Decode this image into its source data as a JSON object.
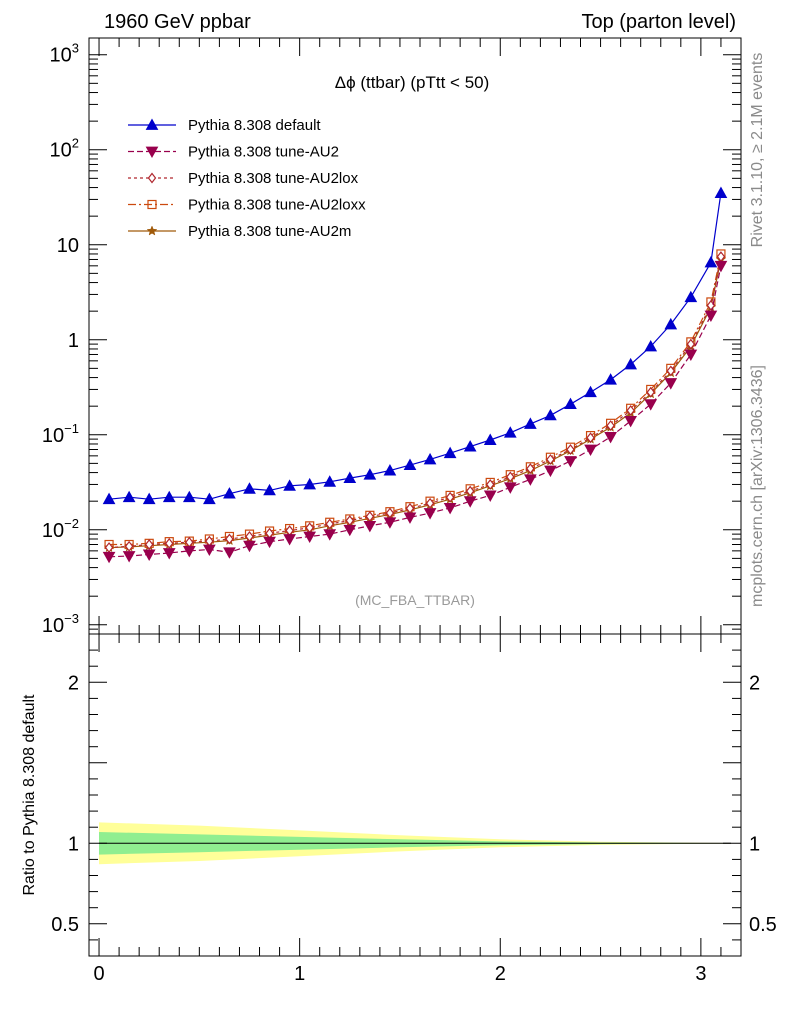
{
  "header": {
    "left": "1960 GeV ppbar",
    "right": "Top (parton level)"
  },
  "side_labels": {
    "rivet": "Rivet 3.1.10, ≥ 2.1M events",
    "mcplots": "mcplots.cern.ch [arXiv:1306.3436]"
  },
  "colors": {
    "default": "#0000cc",
    "au2": "#99004d",
    "au2lox": "#b0282f",
    "au2loxx": "#cc4a0f",
    "au2m": "#a05a0a",
    "band_inner": "#90ee90",
    "band_outer": "#ffff99"
  },
  "chart_data": [
    {
      "type": "line",
      "title": "Δϕ (ttbar) (pTtt < 50)",
      "watermark": "(MC_FBA_TTBAR)",
      "yscale": "log",
      "ylim": [
        0.0008,
        1500
      ],
      "xlim": [
        -0.05,
        3.2
      ],
      "y_ticks": [
        {
          "v": 0.001,
          "base": "10",
          "exp": "−3"
        },
        {
          "v": 0.01,
          "base": "10",
          "exp": "−2"
        },
        {
          "v": 0.1,
          "base": "10",
          "exp": "−1"
        },
        {
          "v": 1,
          "base": "1",
          "exp": ""
        },
        {
          "v": 10,
          "base": "10",
          "exp": ""
        },
        {
          "v": 100,
          "base": "10",
          "exp": "2"
        },
        {
          "v": 1000,
          "base": "10",
          "exp": "3"
        }
      ],
      "legend_position": "top-left",
      "x": [
        0.05,
        0.15,
        0.25,
        0.35,
        0.45,
        0.55,
        0.65,
        0.75,
        0.85,
        0.95,
        1.05,
        1.15,
        1.25,
        1.35,
        1.45,
        1.55,
        1.65,
        1.75,
        1.85,
        1.95,
        2.05,
        2.15,
        2.25,
        2.35,
        2.45,
        2.55,
        2.65,
        2.75,
        2.85,
        2.95,
        3.05,
        3.1
      ],
      "series": [
        {
          "name": "Pythia 8.308 default",
          "key": "default",
          "marker": "triangle-up",
          "dash": "",
          "values": [
            0.021,
            0.022,
            0.021,
            0.022,
            0.022,
            0.021,
            0.024,
            0.027,
            0.026,
            0.029,
            0.03,
            0.032,
            0.035,
            0.038,
            0.042,
            0.048,
            0.055,
            0.064,
            0.075,
            0.088,
            0.105,
            0.13,
            0.16,
            0.21,
            0.28,
            0.38,
            0.55,
            0.85,
            1.45,
            2.8,
            6.5,
            35
          ]
        },
        {
          "name": "Pythia 8.308 tune-AU2",
          "key": "au2",
          "marker": "triangle-down",
          "dash": "6,3",
          "values": [
            0.0052,
            0.0053,
            0.0055,
            0.0057,
            0.006,
            0.0062,
            0.0058,
            0.0068,
            0.0075,
            0.008,
            0.0085,
            0.009,
            0.01,
            0.011,
            0.012,
            0.0135,
            0.015,
            0.017,
            0.02,
            0.023,
            0.028,
            0.034,
            0.042,
            0.053,
            0.07,
            0.095,
            0.14,
            0.21,
            0.35,
            0.7,
            1.8,
            6.0
          ]
        },
        {
          "name": "Pythia 8.308 tune-AU2lox",
          "key": "au2lox",
          "marker": "diamond",
          "dash": "3,3",
          "values": [
            0.0065,
            0.0067,
            0.007,
            0.0072,
            0.0074,
            0.0076,
            0.008,
            0.0085,
            0.0092,
            0.0098,
            0.0105,
            0.0115,
            0.0125,
            0.0138,
            0.015,
            0.0168,
            0.019,
            0.022,
            0.0255,
            0.03,
            0.036,
            0.044,
            0.055,
            0.07,
            0.093,
            0.125,
            0.18,
            0.28,
            0.47,
            0.9,
            2.3,
            7.5
          ]
        },
        {
          "name": "Pythia 8.308 tune-AU2loxx",
          "key": "au2loxx",
          "marker": "square-open",
          "dash": "8,3,2,3",
          "values": [
            0.007,
            0.007,
            0.0072,
            0.0075,
            0.0076,
            0.008,
            0.0085,
            0.009,
            0.0097,
            0.0103,
            0.011,
            0.012,
            0.013,
            0.0142,
            0.0155,
            0.0175,
            0.02,
            0.023,
            0.027,
            0.0315,
            0.038,
            0.046,
            0.058,
            0.074,
            0.098,
            0.132,
            0.19,
            0.3,
            0.5,
            0.95,
            2.5,
            8.0
          ]
        },
        {
          "name": "Pythia 8.308 tune-AU2m",
          "key": "au2m",
          "marker": "star",
          "dash": "",
          "values": [
            0.0065,
            0.0066,
            0.0068,
            0.007,
            0.0072,
            0.0074,
            0.0077,
            0.0082,
            0.0088,
            0.0094,
            0.01,
            0.011,
            0.012,
            0.0132,
            0.0145,
            0.0162,
            0.0183,
            0.021,
            0.0245,
            0.029,
            0.0345,
            0.042,
            0.053,
            0.068,
            0.09,
            0.12,
            0.17,
            0.27,
            0.45,
            0.85,
            2.2,
            7.0
          ]
        }
      ]
    },
    {
      "type": "area",
      "ylabel": "Ratio to Pythia 8.308 default",
      "xlim": [
        -0.05,
        3.2
      ],
      "ylim": [
        0.3,
        2.3
      ],
      "x_ticks": [
        "0",
        "1",
        "2",
        "3"
      ],
      "y_ticks": [
        "0.5",
        "1",
        "2"
      ],
      "band_x": [
        0.0,
        0.5,
        1.0,
        1.5,
        2.0,
        2.5,
        3.0,
        3.15
      ],
      "band_outer_half": [
        0.13,
        0.11,
        0.08,
        0.05,
        0.025,
        0.01,
        0.003,
        0.002
      ],
      "band_inner_half": [
        0.07,
        0.055,
        0.04,
        0.025,
        0.012,
        0.005,
        0.002,
        0.001
      ],
      "reference": 1.0
    }
  ]
}
